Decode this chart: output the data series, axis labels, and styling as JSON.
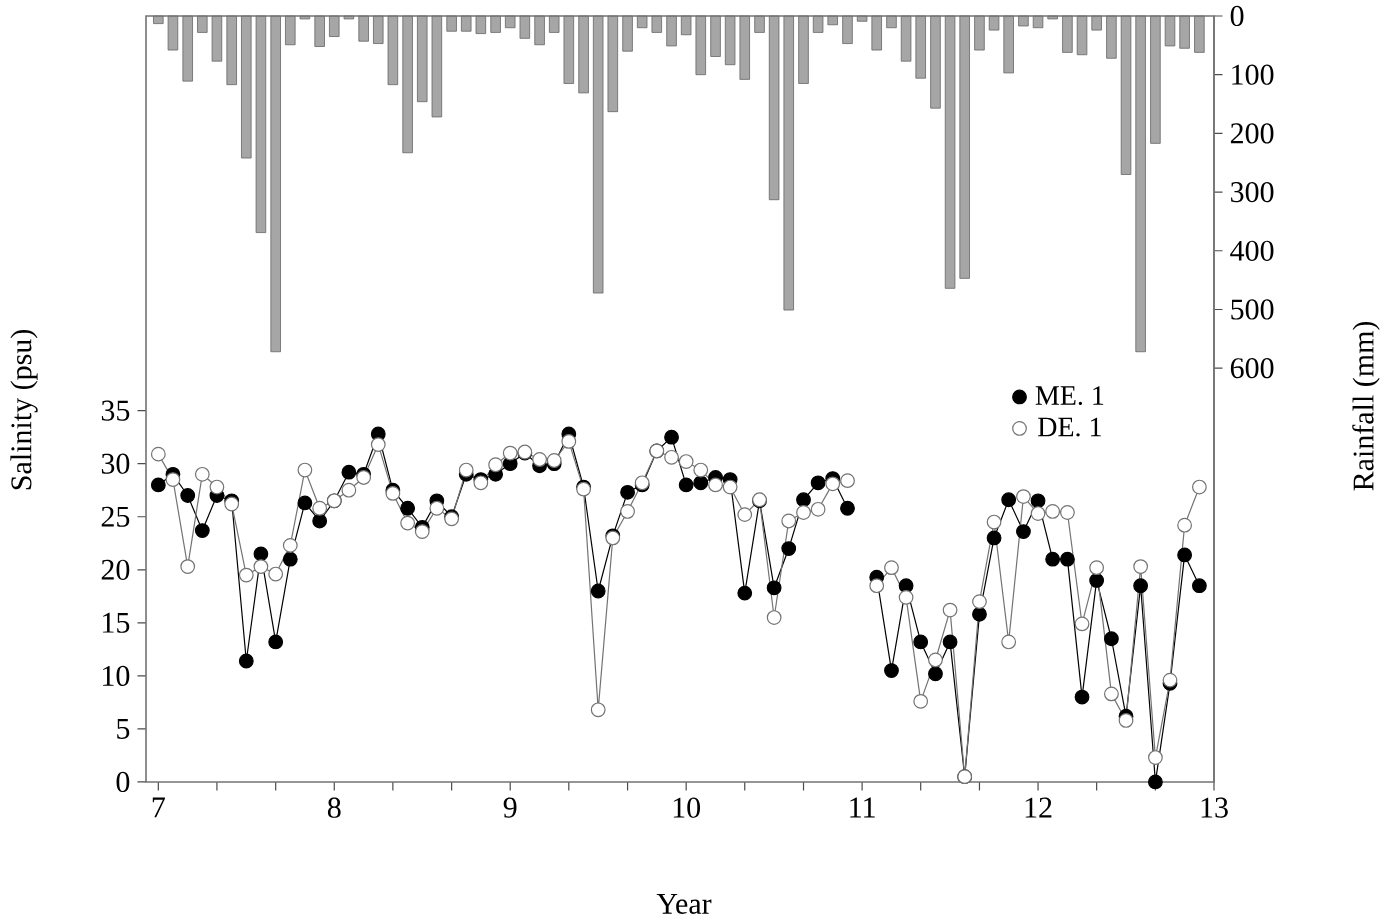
{
  "chart_data": {
    "type": "line",
    "xlabel": "Year",
    "ylabel": "Salinity (psu)",
    "y2label": "Rainfall (mm)",
    "x": [
      7,
      7.083,
      7.167,
      7.25,
      7.333,
      7.417,
      7.5,
      7.583,
      7.667,
      7.75,
      7.833,
      7.917,
      8,
      8.083,
      8.167,
      8.25,
      8.333,
      8.417,
      8.5,
      8.583,
      8.667,
      8.75,
      8.833,
      8.917,
      9,
      9.083,
      9.167,
      9.25,
      9.333,
      9.417,
      9.5,
      9.583,
      9.667,
      9.75,
      9.833,
      9.917,
      10,
      10.083,
      10.167,
      10.25,
      10.333,
      10.417,
      10.5,
      10.583,
      10.667,
      10.75,
      10.833,
      10.917,
      11,
      11.083,
      11.167,
      11.25,
      11.333,
      11.417,
      11.5,
      11.583,
      11.667,
      11.75,
      11.833,
      11.917,
      12,
      12.083,
      12.167,
      12.25,
      12.333,
      12.417,
      12.5,
      12.583,
      12.667,
      12.75,
      12.833,
      12.917
    ],
    "series": [
      {
        "type": "bar",
        "axis": "y2",
        "color": "#a6a6a6",
        "values": [
          13,
          58,
          111,
          28,
          77,
          117,
          242,
          369,
          572,
          49,
          5,
          52,
          35,
          5,
          43,
          47,
          117,
          233,
          146,
          172,
          26,
          26,
          30,
          28,
          20,
          38,
          49,
          28,
          115,
          131,
          472,
          163,
          60,
          20,
          28,
          51,
          32,
          100,
          69,
          83,
          108,
          28,
          313,
          501,
          115,
          28,
          15,
          47,
          9,
          58,
          20,
          77,
          106,
          157,
          464,
          447,
          58,
          24,
          97,
          17,
          20,
          5,
          62,
          66,
          24,
          72,
          270,
          572,
          217,
          51,
          55,
          62
        ]
      },
      {
        "name": "ME. 1",
        "color": "#000000",
        "values": [
          28,
          29,
          27,
          23.7,
          27,
          26.5,
          11.4,
          21.5,
          13.2,
          21,
          26.3,
          24.6,
          26.5,
          29.2,
          29,
          32.8,
          27.5,
          25.8,
          24,
          26.5,
          25,
          29,
          28.5,
          29,
          30,
          31,
          29.8,
          30,
          32.8,
          27.8,
          18,
          23.2,
          27.3,
          28,
          31.2,
          32.5,
          28,
          28.2,
          28.7,
          28.5,
          17.8,
          26.5,
          18.3,
          22,
          26.6,
          28.2,
          28.6,
          25.8,
          null,
          19.3,
          10.5,
          18.5,
          13.2,
          10.2,
          13.2,
          0.5,
          15.8,
          23,
          26.6,
          23.6,
          26.5,
          21,
          21,
          8,
          19,
          13.5,
          6.2,
          18.5,
          0,
          9.3,
          21.4,
          18.5
        ]
      },
      {
        "name": "DE. 1",
        "color": "#ffffff",
        "values": [
          30.9,
          28.5,
          20.3,
          29,
          27.8,
          26.2,
          19.5,
          20.3,
          19.6,
          22.3,
          29.4,
          25.8,
          26.5,
          27.5,
          28.7,
          31.8,
          27.2,
          24.4,
          23.6,
          25.8,
          24.8,
          29.4,
          28.2,
          29.9,
          31,
          31.1,
          30.4,
          30.3,
          32.1,
          27.6,
          6.8,
          23,
          25.5,
          28.2,
          31.2,
          30.6,
          30.2,
          29.4,
          28,
          27.8,
          25.2,
          26.6,
          15.5,
          24.6,
          25.4,
          25.7,
          28.1,
          28.4,
          null,
          18.5,
          20.2,
          17.4,
          7.6,
          11.5,
          16.2,
          0.5,
          17,
          24.5,
          13.2,
          26.9,
          25.3,
          25.5,
          25.4,
          14.9,
          20.2,
          8.3,
          5.8,
          20.3,
          2.3,
          9.6,
          24.2,
          27.8
        ]
      }
    ],
    "xlim": [
      6.93,
      13
    ],
    "xticks": [
      7,
      {
        "value": 7.333,
        "label": null
      },
      {
        "value": 7.667,
        "label": null
      },
      8,
      {
        "value": 8.333,
        "label": null
      },
      {
        "value": 8.667,
        "label": null
      },
      9,
      {
        "value": 9.333,
        "label": null
      },
      {
        "value": 9.667,
        "label": null
      },
      10,
      {
        "value": 10.333,
        "label": null
      },
      {
        "value": 10.667,
        "label": null
      },
      11,
      {
        "value": 11.333,
        "label": null
      },
      {
        "value": 11.667,
        "label": null
      },
      12,
      {
        "value": 12.333,
        "label": null
      },
      {
        "value": 12.667,
        "label": null
      },
      13
    ],
    "ylim": [
      0,
      72.2
    ],
    "yticks": [
      0,
      5,
      10,
      15,
      20,
      25,
      30,
      35
    ],
    "y2lim": [
      1305,
      0
    ],
    "y2ticks": [
      0,
      100,
      200,
      300,
      400,
      500,
      600
    ],
    "marker": "circle",
    "line_style": "solid",
    "legend": "right"
  }
}
